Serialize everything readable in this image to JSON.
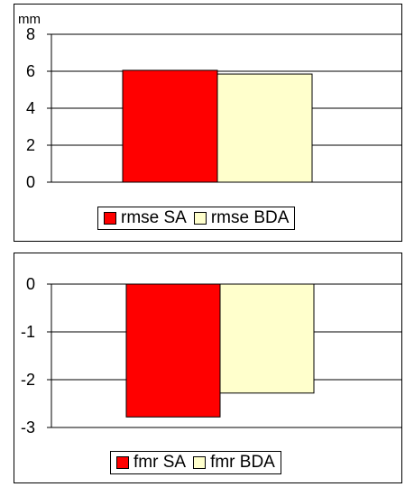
{
  "chart_data": [
    {
      "type": "bar",
      "unit_label": "mm",
      "series": [
        {
          "name": "rmse SA",
          "values": [
            6.05
          ],
          "color": "#ff0000"
        },
        {
          "name": "rmse BDA",
          "values": [
            5.85
          ],
          "color": "#ffffcc"
        }
      ],
      "ylim": [
        0,
        8
      ],
      "yticks": [
        "0",
        "2",
        "4",
        "6",
        "8"
      ],
      "ytick_values": [
        0,
        2,
        4,
        6,
        8
      ],
      "grid": true,
      "legend_position": "bottom-center"
    },
    {
      "type": "bar",
      "series": [
        {
          "name": "fmr SA",
          "values": [
            -2.78
          ],
          "color": "#ff0000"
        },
        {
          "name": "fmr BDA",
          "values": [
            -2.28
          ],
          "color": "#ffffcc"
        }
      ],
      "ylim": [
        -3,
        0
      ],
      "yticks": [
        "0",
        "-1",
        "-2",
        "-3"
      ],
      "ytick_values": [
        0,
        -1,
        -2,
        -3
      ],
      "grid": true,
      "legend_position": "bottom-center"
    }
  ]
}
